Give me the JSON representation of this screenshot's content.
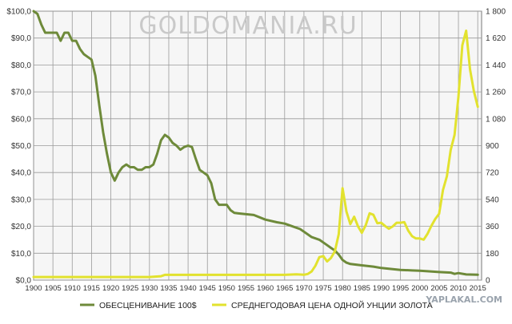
{
  "watermark": "GOLDOMANIA.RU",
  "corner_watermark": "YAPLAKAL.COM",
  "colors": {
    "purchasing_power": "#6e8a3a",
    "gold_price": "#e2e22e",
    "grid": "#9a9a9a",
    "plot_bg": "#f6f6f6"
  },
  "chart_data": {
    "type": "line",
    "title": "",
    "x_ticks": [
      1900,
      1905,
      1910,
      1915,
      1920,
      1925,
      1930,
      1935,
      1940,
      1945,
      1950,
      1955,
      1960,
      1965,
      1970,
      1975,
      1980,
      1985,
      1990,
      1995,
      2000,
      2005,
      2010,
      2015
    ],
    "xlim": [
      1900,
      2016
    ],
    "y_left": {
      "lim": [
        0,
        100
      ],
      "ticks": [
        0,
        10,
        20,
        30,
        40,
        50,
        60,
        70,
        80,
        90,
        100
      ],
      "tick_labels": [
        "$0,0",
        "$10,0",
        "$20,0",
        "$30,0",
        "$40,0",
        "$50,0",
        "$60,0",
        "$70,0",
        "$80,0",
        "$90,0",
        "$100,0"
      ]
    },
    "y_right": {
      "lim": [
        0,
        1800
      ],
      "ticks": [
        0,
        180,
        360,
        540,
        720,
        900,
        1080,
        1260,
        1440,
        1620,
        1800
      ],
      "tick_labels": [
        "0",
        "180",
        "360",
        "540",
        "720",
        "900",
        "1 080",
        "1 260",
        "1 440",
        "1 620",
        "1 800"
      ]
    },
    "legend_position": "bottom",
    "series": [
      {
        "name": "ОБЕСЦЕНИВАНИЕ  100$",
        "axis": "left",
        "x": [
          1900,
          1901,
          1902,
          1903,
          1904,
          1905,
          1906,
          1907,
          1908,
          1909,
          1910,
          1911,
          1912,
          1913,
          1914,
          1915,
          1916,
          1917,
          1918,
          1919,
          1920,
          1921,
          1922,
          1923,
          1924,
          1925,
          1926,
          1927,
          1928,
          1929,
          1930,
          1931,
          1932,
          1933,
          1934,
          1935,
          1936,
          1937,
          1938,
          1939,
          1940,
          1941,
          1942,
          1943,
          1944,
          1945,
          1946,
          1947,
          1948,
          1949,
          1950,
          1951,
          1952,
          1953,
          1955,
          1957,
          1960,
          1963,
          1965,
          1967,
          1969,
          1970,
          1972,
          1974,
          1975,
          1976,
          1977,
          1978,
          1979,
          1980,
          1981,
          1982,
          1985,
          1988,
          1990,
          1992,
          1995,
          1998,
          2000,
          2002,
          2005,
          2008,
          2009,
          2010,
          2012,
          2015
        ],
        "values": [
          100,
          99,
          95,
          92,
          92,
          92,
          92,
          89,
          92,
          92,
          89,
          89,
          86,
          84,
          83,
          82,
          76,
          65,
          55,
          47,
          40,
          37,
          40,
          42,
          43,
          42,
          42,
          41,
          41,
          42,
          42,
          43,
          47,
          52,
          54,
          53,
          51,
          50,
          48.5,
          49.5,
          50,
          49.5,
          45,
          41,
          40,
          39,
          36,
          30,
          28,
          28,
          28,
          26,
          25,
          24.8,
          24.5,
          24.2,
          22.5,
          21.5,
          21,
          20,
          19,
          18,
          16,
          15,
          14,
          13,
          12,
          11,
          9.5,
          7.5,
          6.5,
          6,
          5.5,
          5,
          4.5,
          4.2,
          3.8,
          3.6,
          3.5,
          3.3,
          3,
          2.8,
          2.3,
          2.6,
          2.1,
          2
        ]
      },
      {
        "name": "СРЕДНЕГОДОВАЯ  ЦЕНА ОДНОЙ УНЦИИ ЗОЛОТА",
        "axis": "right",
        "x": [
          1900,
          1910,
          1920,
          1930,
          1933,
          1934,
          1940,
          1950,
          1960,
          1965,
          1968,
          1970,
          1971,
          1972,
          1973,
          1974,
          1975,
          1976,
          1977,
          1978,
          1979,
          1980,
          1981,
          1982,
          1983,
          1984,
          1985,
          1986,
          1987,
          1988,
          1989,
          1990,
          1991,
          1992,
          1993,
          1994,
          1995,
          1996,
          1997,
          1998,
          1999,
          2000,
          2001,
          2002,
          2003,
          2004,
          2005,
          2006,
          2007,
          2008,
          2009,
          2010,
          2011,
          2012,
          2013,
          2014,
          2015
        ],
        "values": [
          20.7,
          20.7,
          20.7,
          20.7,
          26,
          35,
          35,
          35,
          35,
          35,
          39,
          36,
          41,
          58,
          97,
          154,
          161,
          125,
          148,
          193,
          307,
          615,
          460,
          375,
          424,
          360,
          317,
          368,
          447,
          437,
          381,
          384,
          362,
          344,
          360,
          384,
          384,
          388,
          331,
          294,
          279,
          279,
          271,
          310,
          363,
          409,
          444,
          603,
          695,
          872,
          972,
          1225,
          1572,
          1669,
          1411,
          1266,
          1160
        ]
      }
    ]
  }
}
